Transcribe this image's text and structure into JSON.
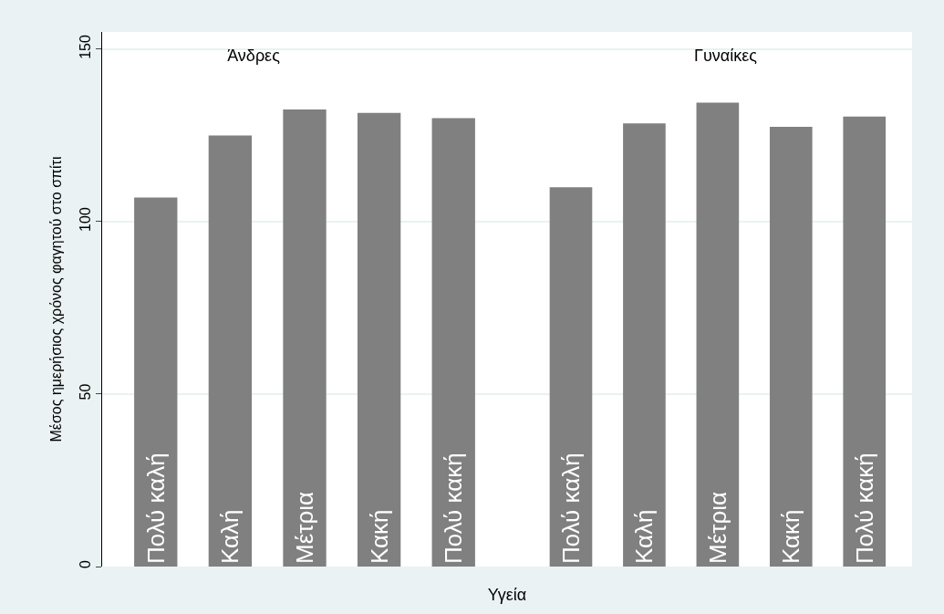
{
  "chart_data": [
    {
      "type": "bar",
      "title": "Άνδρες",
      "ylabel": "Μέσος ημερήσιος χρόνος φαγητού στο σπίτι",
      "categories": [
        "Πολύ καλή",
        "Καλή",
        "Μέτρια",
        "Κακή",
        "Πολύ κακή"
      ],
      "values": [
        107,
        125,
        132.5,
        131.5,
        130
      ],
      "color": "#808080",
      "ylim": [
        0,
        155
      ],
      "yticks": [
        0,
        50,
        100,
        150
      ],
      "grid": "y"
    },
    {
      "type": "bar",
      "title": "Γυναίκες",
      "xlabel": "Υγεία",
      "categories": [
        "Πολύ καλή",
        "Καλή",
        "Μέτρια",
        "Κακή",
        "Πολύ κακή"
      ],
      "values": [
        110,
        128.5,
        134.5,
        127.5,
        130.5
      ],
      "color": "#808080",
      "ylim": [
        0,
        155
      ],
      "yticks": [
        0,
        50,
        100,
        150
      ],
      "grid": "y",
      "tick_labels": "x"
    }
  ]
}
